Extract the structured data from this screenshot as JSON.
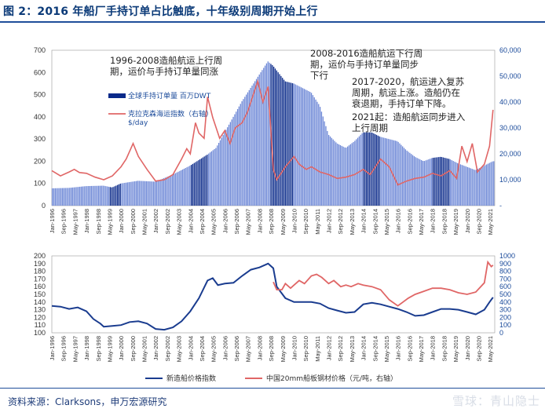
{
  "figure": {
    "title": "图 2：2016 年船厂手持订单占比触底，十年级别周期开始上行",
    "source": "资料来源：Clarksons，申万宏源研究",
    "watermark": "雪球：青山隐士"
  },
  "colors": {
    "bar": "#3f63c9",
    "bar_dark": "#0a2a8a",
    "line": "#e06666",
    "navy": "#1a3c8f"
  },
  "x_tick_labels": [
    "Jan-1996",
    "Sep-1996",
    "May-1997",
    "Jan-1998",
    "Sep-1998",
    "May-1999",
    "Jan-2000",
    "Sep-2000",
    "May-2001",
    "Jan-2002",
    "Sep-2002",
    "May-2003",
    "Jan-2004",
    "Sep-2004",
    "May-2005",
    "Jan-2006",
    "Sep-2006",
    "May-2007",
    "Jan-2008",
    "Sep-2008",
    "May-2009",
    "Jan-2010",
    "Sep-2010",
    "May-2011",
    "Jan-2012",
    "Sep-2012",
    "May-2013",
    "Jan-2014",
    "Sep-2014",
    "May-2015",
    "Jan-2016",
    "Sep-2016",
    "May-2017",
    "Jan-2018",
    "Sep-2018",
    "May-2019",
    "Jan-2020",
    "Sep-2020",
    "May-2021"
  ],
  "chart_data": [
    {
      "type": "bar",
      "x_range": [
        "Jan-1996",
        "Jul-2021"
      ],
      "ylim": [
        0,
        700
      ],
      "yticks": [
        0,
        100,
        200,
        300,
        400,
        500,
        600,
        700
      ],
      "y2lim": [
        0,
        60000
      ],
      "y2ticks": [
        "-",
        "10,000",
        "20,000",
        "30,000",
        "40,000",
        "50,000",
        "60,000"
      ],
      "legend": {
        "position": "upper-left",
        "entries": [
          "全球手持订单量 百万DWT",
          "克拉克森海运指数（右轴）\n$/day"
        ]
      },
      "annotations": [
        "1996-2008造船航运上行周\n期，运价与手持订单量同涨",
        "2008-2016造船航运下行周\n期，运价与手持订单量同步\n下行",
        "2017-2020，航运进入复苏\n周期，航运上涨。造船仍在\n衰退期，手持订单下降。",
        "2021起：造船航运同步进入\n上行周期"
      ],
      "shaded_periods": [
        [
          "May-1999",
          "Jan-2000"
        ],
        [
          "Jan-2004",
          "Jan-2005"
        ],
        [
          "Sep-2008",
          "Jan-2010"
        ],
        [
          "Jan-2014",
          "Jan-2015"
        ],
        [
          "Jan-2018",
          "Jan-2019"
        ]
      ],
      "series": [
        {
          "name": "全球手持订单量 百万DWT",
          "axis": "left",
          "kind": "bar",
          "points": [
            [
              1996.0,
              78
            ],
            [
              1997.0,
              80
            ],
            [
              1998.0,
              88
            ],
            [
              1999.0,
              90
            ],
            [
              1999.5,
              82
            ],
            [
              2000.0,
              100
            ],
            [
              2001.0,
              112
            ],
            [
              2002.0,
              108
            ],
            [
              2003.0,
              140
            ],
            [
              2004.0,
              180
            ],
            [
              2005.0,
              230
            ],
            [
              2005.5,
              260
            ],
            [
              2006.0,
              330
            ],
            [
              2007.0,
              470
            ],
            [
              2008.0,
              590
            ],
            [
              2008.5,
              650
            ],
            [
              2008.8,
              630
            ],
            [
              2009.5,
              560
            ],
            [
              2010.0,
              550
            ],
            [
              2011.0,
              510
            ],
            [
              2011.5,
              450
            ],
            [
              2012.0,
              320
            ],
            [
              2012.5,
              280
            ],
            [
              2013.0,
              260
            ],
            [
              2013.5,
              290
            ],
            [
              2014.0,
              330
            ],
            [
              2014.5,
              330
            ],
            [
              2015.0,
              310
            ],
            [
              2015.5,
              300
            ],
            [
              2016.0,
              290
            ],
            [
              2016.5,
              250
            ],
            [
              2017.0,
              220
            ],
            [
              2017.5,
              200
            ],
            [
              2018.0,
              215
            ],
            [
              2018.5,
              220
            ],
            [
              2019.0,
              210
            ],
            [
              2019.5,
              190
            ],
            [
              2020.0,
              175
            ],
            [
              2020.5,
              160
            ],
            [
              2021.0,
              180
            ],
            [
              2021.5,
              200
            ]
          ]
        },
        {
          "name": "克拉克森海运指数（右轴） $/day",
          "axis": "right",
          "kind": "line",
          "points": [
            [
              1996.0,
              13500
            ],
            [
              1996.5,
              11500
            ],
            [
              1997.0,
              13000
            ],
            [
              1997.3,
              14000
            ],
            [
              1997.6,
              12800
            ],
            [
              1998.0,
              12500
            ],
            [
              1998.5,
              11000
            ],
            [
              1999.0,
              10000
            ],
            [
              1999.5,
              11500
            ],
            [
              2000.0,
              15000
            ],
            [
              2000.3,
              18000
            ],
            [
              2000.7,
              24000
            ],
            [
              2001.0,
              19000
            ],
            [
              2001.5,
              14000
            ],
            [
              2002.0,
              9500
            ],
            [
              2002.5,
              10000
            ],
            [
              2003.0,
              12000
            ],
            [
              2003.5,
              18000
            ],
            [
              2003.8,
              22000
            ],
            [
              2004.0,
              20000
            ],
            [
              2004.3,
              32000
            ],
            [
              2004.5,
              28000
            ],
            [
              2004.8,
              26000
            ],
            [
              2005.0,
              42000
            ],
            [
              2005.3,
              34000
            ],
            [
              2005.7,
              26000
            ],
            [
              2006.0,
              29000
            ],
            [
              2006.3,
              24000
            ],
            [
              2006.6,
              30000
            ],
            [
              2007.0,
              32000
            ],
            [
              2007.3,
              36000
            ],
            [
              2007.6,
              42000
            ],
            [
              2007.9,
              48000
            ],
            [
              2008.2,
              40000
            ],
            [
              2008.5,
              46000
            ],
            [
              2008.8,
              14000
            ],
            [
              2009.0,
              10000
            ],
            [
              2009.5,
              15000
            ],
            [
              2010.0,
              19000
            ],
            [
              2010.3,
              16000
            ],
            [
              2010.7,
              14000
            ],
            [
              2011.0,
              15000
            ],
            [
              2011.5,
              13000
            ],
            [
              2012.0,
              12000
            ],
            [
              2012.5,
              10500
            ],
            [
              2013.0,
              11000
            ],
            [
              2013.5,
              12000
            ],
            [
              2014.0,
              14000
            ],
            [
              2014.4,
              12000
            ],
            [
              2014.8,
              16000
            ],
            [
              2015.0,
              18000
            ],
            [
              2015.5,
              15000
            ],
            [
              2016.0,
              8000
            ],
            [
              2016.5,
              9500
            ],
            [
              2017.0,
              10500
            ],
            [
              2017.5,
              11000
            ],
            [
              2018.0,
              12500
            ],
            [
              2018.5,
              11500
            ],
            [
              2019.0,
              13500
            ],
            [
              2019.4,
              10500
            ],
            [
              2019.7,
              23000
            ],
            [
              2020.0,
              17000
            ],
            [
              2020.3,
              24000
            ],
            [
              2020.6,
              13000
            ],
            [
              2021.0,
              16000
            ],
            [
              2021.3,
              23000
            ],
            [
              2021.5,
              37000
            ]
          ]
        }
      ]
    },
    {
      "type": "line",
      "x_range": [
        "Jan-1996",
        "Jul-2021"
      ],
      "ylim": [
        100,
        200
      ],
      "yticks": [
        100,
        110,
        120,
        130,
        140,
        150,
        160,
        170,
        180,
        190,
        200
      ],
      "y2lim": [
        0,
        1000
      ],
      "y2ticks": [
        0,
        100,
        200,
        300,
        400,
        500,
        600,
        700,
        800,
        900,
        1000
      ],
      "legend": {
        "position": "bottom",
        "entries": [
          "新造船价格指数",
          "中国20mm船板钢材价格（元/吨，右轴）"
        ]
      },
      "series": [
        {
          "name": "新造船价格指数",
          "axis": "left",
          "points": [
            [
              1996.0,
              135
            ],
            [
              1996.5,
              134
            ],
            [
              1997.0,
              131
            ],
            [
              1997.5,
              133
            ],
            [
              1998.0,
              128
            ],
            [
              1998.4,
              118
            ],
            [
              1998.8,
              112
            ],
            [
              1999.0,
              108
            ],
            [
              1999.5,
              109
            ],
            [
              2000.0,
              110
            ],
            [
              2000.5,
              114
            ],
            [
              2001.0,
              115
            ],
            [
              2001.5,
              112
            ],
            [
              2002.0,
              105
            ],
            [
              2002.5,
              104
            ],
            [
              2003.0,
              107
            ],
            [
              2003.5,
              115
            ],
            [
              2004.0,
              128
            ],
            [
              2004.5,
              145
            ],
            [
              2005.0,
              168
            ],
            [
              2005.3,
              171
            ],
            [
              2005.6,
              162
            ],
            [
              2006.0,
              164
            ],
            [
              2006.5,
              165
            ],
            [
              2007.0,
              174
            ],
            [
              2007.5,
              182
            ],
            [
              2008.0,
              185
            ],
            [
              2008.5,
              190
            ],
            [
              2008.8,
              184
            ],
            [
              2009.0,
              160
            ],
            [
              2009.5,
              145
            ],
            [
              2010.0,
              140
            ],
            [
              2010.5,
              140
            ],
            [
              2011.0,
              140
            ],
            [
              2011.5,
              138
            ],
            [
              2012.0,
              132
            ],
            [
              2012.5,
              129
            ],
            [
              2013.0,
              126
            ],
            [
              2013.5,
              127
            ],
            [
              2014.0,
              137
            ],
            [
              2014.5,
              139
            ],
            [
              2015.0,
              137
            ],
            [
              2015.5,
              134
            ],
            [
              2016.0,
              131
            ],
            [
              2016.5,
              127
            ],
            [
              2017.0,
              122
            ],
            [
              2017.5,
              123
            ],
            [
              2018.0,
              127
            ],
            [
              2018.5,
              131
            ],
            [
              2019.0,
              131
            ],
            [
              2019.5,
              130
            ],
            [
              2020.0,
              127
            ],
            [
              2020.5,
              124
            ],
            [
              2021.0,
              130
            ],
            [
              2021.3,
              140
            ],
            [
              2021.5,
              146
            ]
          ]
        },
        {
          "name": "中国20mm船板钢材价格（元/吨，右轴）",
          "axis": "right",
          "points": [
            [
              2008.8,
              660
            ],
            [
              2009.0,
              560
            ],
            [
              2009.3,
              560
            ],
            [
              2009.5,
              640
            ],
            [
              2009.8,
              580
            ],
            [
              2010.0,
              620
            ],
            [
              2010.3,
              680
            ],
            [
              2010.6,
              640
            ],
            [
              2011.0,
              740
            ],
            [
              2011.3,
              760
            ],
            [
              2011.6,
              720
            ],
            [
              2012.0,
              640
            ],
            [
              2012.3,
              680
            ],
            [
              2012.7,
              600
            ],
            [
              2013.0,
              620
            ],
            [
              2013.3,
              600
            ],
            [
              2013.7,
              640
            ],
            [
              2014.0,
              620
            ],
            [
              2014.5,
              600
            ],
            [
              2015.0,
              560
            ],
            [
              2015.5,
              430
            ],
            [
              2016.0,
              350
            ],
            [
              2016.3,
              400
            ],
            [
              2016.6,
              450
            ],
            [
              2017.0,
              500
            ],
            [
              2017.5,
              540
            ],
            [
              2018.0,
              580
            ],
            [
              2018.5,
              580
            ],
            [
              2019.0,
              560
            ],
            [
              2019.5,
              520
            ],
            [
              2020.0,
              500
            ],
            [
              2020.5,
              530
            ],
            [
              2021.0,
              650
            ],
            [
              2021.2,
              920
            ],
            [
              2021.4,
              860
            ],
            [
              2021.5,
              880
            ]
          ]
        }
      ]
    }
  ]
}
